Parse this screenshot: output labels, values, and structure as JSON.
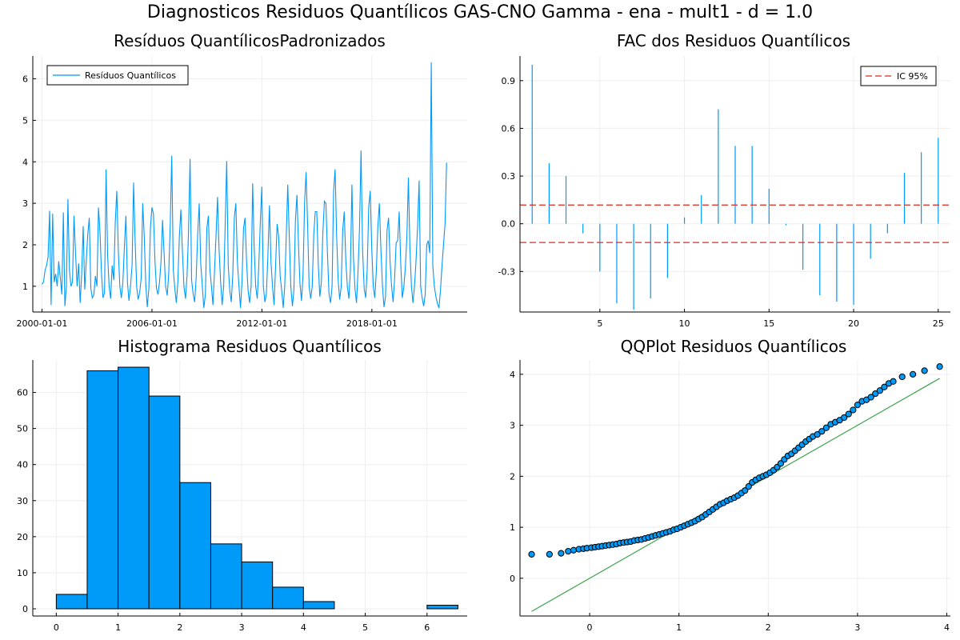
{
  "figure_title": "Diagnosticos Residuos  Quantílicos GAS-CNO Gamma - ena - mult1 - d = 1.0",
  "colors": {
    "series": "#009af9",
    "ci": "#e26f46",
    "ci_dash": "#e0291f",
    "refline": "#3da44d",
    "axis": "#000000",
    "grid": "#eeeeee"
  },
  "chart_data": [
    {
      "type": "line",
      "title": "Resíduos  QuantílicosPadronizados",
      "xlabel": "",
      "ylabel": "",
      "x_tick_labels": [
        "2000-01-01",
        "2006-01-01",
        "2012-01-01",
        "2018-01-01"
      ],
      "x_ticks": [
        2000.0,
        2006.0,
        2012.0,
        2018.0
      ],
      "xlim": [
        1999.5,
        2023.2
      ],
      "y_ticks": [
        1,
        2,
        3,
        4,
        5,
        6
      ],
      "ylim": [
        0.38,
        6.55
      ],
      "grid": true,
      "legend": {
        "placement": "top-left",
        "entries": [
          "Resíduos Quantílicos"
        ]
      },
      "series": [
        {
          "name": "Resíduos Quantílicos",
          "x_start": 2000.0,
          "x_step": 0.0833,
          "values": [
            1.05,
            1.1,
            1.38,
            1.5,
            1.7,
            2.82,
            0.55,
            2.75,
            1.1,
            1.3,
            1.0,
            1.6,
            1.2,
            0.8,
            2.78,
            0.52,
            1.0,
            3.1,
            1.4,
            1.0,
            1.1,
            2.7,
            1.8,
            1.0,
            1.55,
            0.6,
            1.3,
            2.45,
            0.92,
            1.6,
            2.25,
            2.65,
            0.95,
            0.72,
            0.8,
            1.25,
            1.0,
            2.9,
            2.3,
            1.3,
            0.72,
            0.85,
            3.82,
            1.75,
            1.0,
            0.7,
            1.5,
            1.15,
            2.55,
            3.3,
            1.85,
            1.0,
            0.72,
            1.1,
            1.95,
            2.7,
            1.1,
            0.65,
            1.0,
            1.5,
            3.5,
            2.1,
            1.0,
            0.68,
            0.85,
            1.2,
            3.0,
            2.2,
            1.05,
            0.5,
            0.95,
            2.4,
            2.9,
            2.75,
            1.6,
            0.95,
            0.8,
            1.1,
            1.6,
            2.6,
            1.8,
            1.0,
            0.78,
            1.3,
            2.5,
            4.15,
            1.4,
            0.95,
            0.6,
            1.1,
            2.2,
            2.85,
            1.85,
            1.0,
            0.7,
            1.25,
            2.35,
            4.07,
            1.15,
            0.82,
            0.62,
            1.2,
            2.25,
            3.0,
            1.55,
            1.0,
            0.48,
            0.8,
            2.4,
            2.7,
            1.4,
            1.0,
            0.55,
            1.35,
            2.2,
            3.15,
            1.9,
            1.1,
            0.55,
            1.0,
            2.5,
            4.02,
            1.5,
            0.9,
            0.62,
            1.3,
            2.65,
            3.0,
            1.6,
            1.0,
            0.48,
            1.1,
            2.4,
            2.65,
            1.6,
            0.9,
            0.6,
            1.0,
            3.48,
            1.95,
            1.0,
            0.7,
            1.5,
            2.55,
            3.4,
            1.0,
            0.62,
            0.82,
            1.75,
            2.95,
            1.6,
            1.0,
            0.55,
            1.5,
            2.5,
            2.2,
            1.25,
            0.9,
            0.48,
            1.0,
            2.2,
            3.45,
            2.2,
            1.0,
            0.52,
            0.9,
            2.6,
            3.2,
            2.0,
            1.05,
            0.65,
            1.3,
            3.0,
            3.75,
            2.5,
            1.0,
            0.7,
            1.0,
            2.25,
            2.8,
            2.8,
            1.5,
            0.75,
            1.1,
            2.3,
            3.05,
            3.0,
            1.8,
            0.8,
            0.6,
            1.0,
            3.3,
            3.82,
            2.2,
            1.15,
            0.68,
            1.0,
            2.35,
            2.8,
            1.6,
            1.0,
            0.7,
            1.4,
            3.45,
            1.7,
            0.95,
            0.6,
            1.35,
            2.4,
            4.27,
            1.9,
            0.95,
            0.72,
            1.4,
            2.9,
            3.3,
            1.9,
            1.0,
            0.72,
            1.35,
            2.45,
            3.0,
            1.9,
            1.0,
            0.5,
            0.75,
            2.35,
            2.65,
            1.6,
            1.0,
            0.62,
            1.2,
            2.05,
            2.1,
            2.8,
            1.5,
            0.72,
            0.98,
            1.45,
            2.2,
            3.62,
            1.9,
            1.0,
            0.6,
            1.0,
            1.6,
            2.45,
            3.55,
            1.0,
            0.72,
            0.52,
            0.8,
            2.0,
            2.1,
            1.8,
            6.4,
            1.5,
            1.0,
            0.75,
            0.58,
            0.48,
            0.9,
            1.5,
            2.0,
            2.5,
            3.98
          ]
        }
      ]
    },
    {
      "type": "bar",
      "title": "FAC dos Residuos Quantílicos",
      "xlabel": "",
      "ylabel": "",
      "x_ticks": [
        5,
        10,
        15,
        20,
        25
      ],
      "xlim": [
        0.28,
        25.72
      ],
      "y_ticks": [
        -0.3,
        0.0,
        0.3,
        0.6,
        0.9
      ],
      "y_tick_labels": [
        "-0.3",
        "0.0",
        "0.3",
        "0.6",
        "0.9"
      ],
      "ylim": [
        -0.555,
        1.055
      ],
      "grid": true,
      "legend": {
        "placement": "top-right",
        "entries": [
          "IC 95%"
        ]
      },
      "lags": [
        1,
        2,
        3,
        4,
        5,
        6,
        7,
        8,
        9,
        10,
        11,
        12,
        13,
        14,
        15,
        16,
        17,
        18,
        19,
        20,
        21,
        22,
        23,
        24,
        25
      ],
      "values": [
        1.0,
        0.38,
        0.3,
        -0.06,
        -0.3,
        -0.5,
        -0.54,
        -0.47,
        -0.34,
        0.04,
        0.18,
        0.72,
        0.49,
        0.49,
        0.22,
        -0.01,
        -0.29,
        -0.45,
        -0.49,
        -0.51,
        -0.22,
        -0.06,
        0.32,
        0.45,
        0.54
      ],
      "confidence_bound": 0.118,
      "ci_label": "IC 95%"
    },
    {
      "type": "bar",
      "title": "Histograma Residuos Quantílicos",
      "xlabel": "",
      "ylabel": "",
      "x_ticks": [
        0,
        1,
        2,
        3,
        4,
        5,
        6
      ],
      "xlim": [
        -0.38,
        6.65
      ],
      "y_ticks": [
        0,
        10,
        20,
        30,
        40,
        50,
        60
      ],
      "ylim": [
        -2.0,
        69.0
      ],
      "grid": true,
      "bin_edges": [
        0.0,
        0.5,
        1.0,
        1.5,
        2.0,
        2.5,
        3.0,
        3.5,
        4.0,
        4.5,
        5.0,
        5.5,
        6.0,
        6.5
      ],
      "values": [
        4,
        66,
        67,
        59,
        35,
        18,
        13,
        6,
        2,
        0,
        0,
        0,
        1
      ]
    },
    {
      "type": "scatter",
      "title": "QQPlot Residuos Quantílicos",
      "xlabel": "",
      "ylabel": "",
      "x_ticks": [
        0,
        1,
        2,
        3,
        4
      ],
      "xlim": [
        -0.78,
        4.04
      ],
      "y_ticks": [
        0,
        1,
        2,
        3,
        4
      ],
      "ylim": [
        -0.74,
        4.28
      ],
      "grid": true,
      "reference_line": {
        "x": [
          -0.65,
          3.92
        ],
        "y": [
          -0.65,
          3.92
        ]
      },
      "points": {
        "x": [
          -0.65,
          -0.45,
          -0.32,
          -0.24,
          -0.18,
          -0.12,
          -0.07,
          -0.03,
          0.02,
          0.06,
          0.1,
          0.14,
          0.18,
          0.22,
          0.26,
          0.3,
          0.34,
          0.38,
          0.42,
          0.46,
          0.5,
          0.54,
          0.58,
          0.62,
          0.66,
          0.7,
          0.74,
          0.78,
          0.82,
          0.86,
          0.9,
          0.94,
          0.98,
          1.02,
          1.06,
          1.1,
          1.14,
          1.18,
          1.22,
          1.26,
          1.3,
          1.34,
          1.38,
          1.42,
          1.46,
          1.5,
          1.54,
          1.58,
          1.62,
          1.66,
          1.7,
          1.74,
          1.78,
          1.82,
          1.86,
          1.9,
          1.94,
          1.98,
          2.02,
          2.06,
          2.1,
          2.14,
          2.18,
          2.22,
          2.26,
          2.3,
          2.34,
          2.38,
          2.42,
          2.46,
          2.5,
          2.55,
          2.6,
          2.65,
          2.7,
          2.75,
          2.8,
          2.85,
          2.9,
          2.95,
          3.0,
          3.05,
          3.1,
          3.15,
          3.2,
          3.25,
          3.3,
          3.35,
          3.4,
          3.5,
          3.62,
          3.75,
          3.92
        ],
        "y": [
          0.47,
          0.47,
          0.49,
          0.53,
          0.55,
          0.57,
          0.58,
          0.59,
          0.6,
          0.61,
          0.62,
          0.63,
          0.64,
          0.65,
          0.66,
          0.67,
          0.69,
          0.7,
          0.71,
          0.72,
          0.74,
          0.75,
          0.76,
          0.78,
          0.8,
          0.82,
          0.84,
          0.86,
          0.88,
          0.9,
          0.92,
          0.95,
          0.97,
          1.0,
          1.03,
          1.06,
          1.09,
          1.12,
          1.16,
          1.2,
          1.25,
          1.3,
          1.35,
          1.4,
          1.45,
          1.48,
          1.52,
          1.55,
          1.58,
          1.62,
          1.67,
          1.72,
          1.8,
          1.88,
          1.93,
          1.97,
          2.0,
          2.03,
          2.07,
          2.12,
          2.18,
          2.25,
          2.33,
          2.4,
          2.44,
          2.5,
          2.56,
          2.62,
          2.68,
          2.73,
          2.78,
          2.82,
          2.88,
          2.95,
          3.02,
          3.06,
          3.1,
          3.15,
          3.22,
          3.3,
          3.4,
          3.47,
          3.5,
          3.55,
          3.62,
          3.68,
          3.75,
          3.82,
          3.86,
          3.95,
          4.0,
          4.07,
          4.15
        ]
      }
    }
  ]
}
